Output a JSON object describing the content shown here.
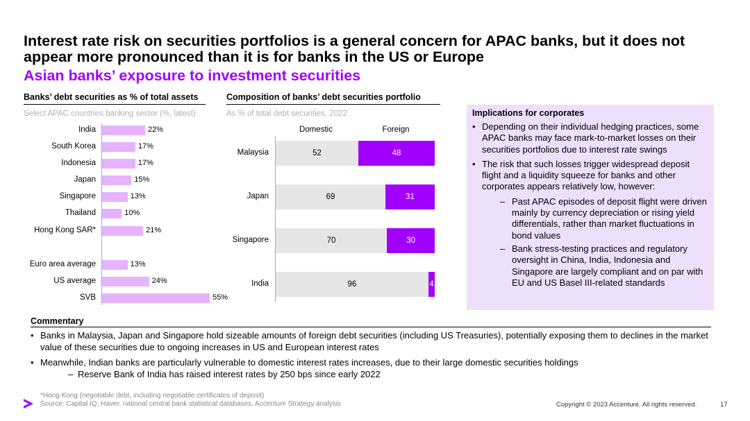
{
  "title": "Interest rate risk on securities portfolios is a general concern for APAC banks, but it does not appear more pronounced than it is for banks in the US or Europe",
  "subtitle": "Asian banks’ exposure to investment securities",
  "left_panel": {
    "title": "Banks’ debt securities as % of total assets",
    "subtitle": "Select APAC countries banking sector (%, latest)"
  },
  "mid_panel": {
    "title": "Composition of banks’ debt securities portfolio",
    "subtitle": "As % of total debt securities, 2022"
  },
  "chart_data": [
    {
      "type": "bar",
      "orientation": "horizontal",
      "title": "Banks’ debt securities as % of total assets",
      "subtitle": "Select APAC countries banking sector (%, latest)",
      "categories": [
        "India",
        "South Korea",
        "Indonesia",
        "Japan",
        "Singapore",
        "Thailand",
        "Hong Kong SAR*",
        "Euro area average",
        "US average",
        "SVB"
      ],
      "values": [
        22,
        17,
        17,
        15,
        13,
        10,
        21,
        13,
        24,
        55
      ],
      "value_labels": [
        "22%",
        "17%",
        "17%",
        "15%",
        "13%",
        "10%",
        "21%",
        "13%",
        "24%",
        "55%"
      ],
      "xlim": [
        0,
        60
      ],
      "color": "#e5b3ff"
    },
    {
      "type": "bar",
      "orientation": "horizontal",
      "stacked": true,
      "title": "Composition of banks’ debt securities portfolio",
      "subtitle": "As % of total debt securities, 2022",
      "categories": [
        "Malaysia",
        "Japan",
        "Singapore",
        "India"
      ],
      "series": [
        {
          "name": "Domestic",
          "values": [
            52,
            69,
            70,
            96
          ],
          "color": "#e6e6e6"
        },
        {
          "name": "Foreign",
          "values": [
            48,
            31,
            30,
            4
          ],
          "color": "#a100ff"
        }
      ],
      "xlim": [
        0,
        100
      ]
    }
  ],
  "implications": {
    "title": "Implications for corporates",
    "bullets": [
      "Depending on their individual hedging practices, some APAC banks may face mark-to-market losses on their securities portfolios due to interest rate swings",
      "The risk that such losses trigger widespread deposit flight and a liquidity squeeze for banks and other corporates appears relatively low, however:"
    ],
    "subbullets": [
      "Past APAC episodes of deposit flight were driven mainly by currency depreciation or rising yield differentials, rather than market fluctuations in bond values",
      "Bank stress-testing practices and regulatory oversight in China, India, Indonesia and Singapore are largely compliant and on par with EU and US Basel III-related standards"
    ]
  },
  "commentary": {
    "title": "Commentary",
    "bullets": [
      "Banks in Malaysia, Japan and Singapore hold sizeable amounts of foreign debt securities (including US Treasuries), potentially exposing them to declines in the market value of these securities due to ongoing increases in US and European interest rates",
      "Meanwhile, Indian banks are particularly vulnerable to domestic interest rates increases, due to their large domestic securities holdings"
    ],
    "subbullet": "Reserve Bank of India has raised interest rates by 250 bps since early 2022"
  },
  "footer": {
    "footnote": "*Hong Kong (negotiable debt, including negotiable certificates of deposit)",
    "source": "Source: Capital IQ, Haver, national central bank statistical databases, Accenture Strategy analysis",
    "copyright": "Copyright © 2023 Accenture. All rights reserved.",
    "page_number": "17"
  },
  "colors": {
    "accent": "#a100ff",
    "light_accent": "#e5b3ff",
    "box_bg": "#ede0fb"
  },
  "logo_icon": "accenture-greater-than-logo"
}
